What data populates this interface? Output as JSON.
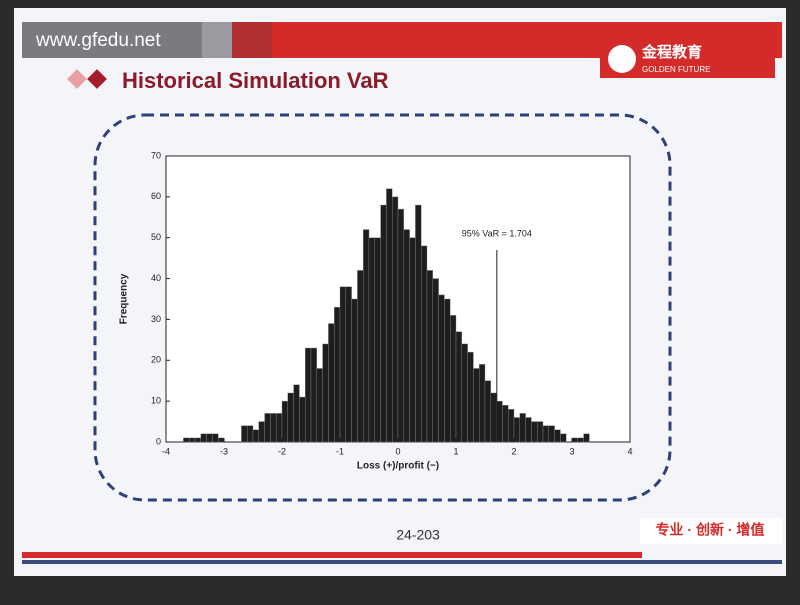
{
  "header": {
    "site": "www.gfedu.net",
    "logo_cn": "金程教育",
    "logo_en": "GOLDEN FUTURE"
  },
  "slide_title": "Historical Simulation VaR",
  "chart_data": {
    "type": "histogram",
    "xlabel": "Loss (+)/profit (−)",
    "ylabel": "Frequency",
    "bins": [
      -3.7,
      -3.6,
      -3.5,
      -3.4,
      -3.3,
      -3.2,
      -3.1,
      -3.0,
      -2.9,
      -2.8,
      -2.7,
      -2.6,
      -2.5,
      -2.4,
      -2.3,
      -2.2,
      -2.1,
      -2.0,
      -1.9,
      -1.8,
      -1.7,
      -1.6,
      -1.5,
      -1.4,
      -1.3,
      -1.2,
      -1.1,
      -1.0,
      -0.9,
      -0.8,
      -0.7,
      -0.6,
      -0.5,
      -0.4,
      -0.3,
      -0.2,
      -0.1,
      0.0,
      0.1,
      0.2,
      0.3,
      0.4,
      0.5,
      0.6,
      0.7,
      0.8,
      0.9,
      1.0,
      1.1,
      1.2,
      1.3,
      1.4,
      1.5,
      1.6,
      1.7,
      1.8,
      1.9,
      2.0,
      2.1,
      2.2,
      2.3,
      2.4,
      2.5,
      2.6,
      2.7,
      2.8,
      2.9,
      3.0,
      3.1,
      3.2,
      3.3
    ],
    "values": [
      1,
      1,
      1,
      2,
      2,
      2,
      1,
      0,
      0,
      0,
      4,
      4,
      3,
      5,
      7,
      7,
      7,
      10,
      12,
      14,
      11,
      23,
      23,
      18,
      24,
      29,
      33,
      38,
      38,
      35,
      42,
      52,
      50,
      50,
      58,
      62,
      60,
      57,
      52,
      50,
      58,
      48,
      42,
      40,
      36,
      35,
      31,
      27,
      24,
      22,
      18,
      19,
      15,
      12,
      10,
      9,
      8,
      6,
      7,
      6,
      5,
      5,
      4,
      4,
      3,
      2,
      0,
      1,
      1,
      2
    ],
    "color": "#1e1e1e",
    "xlim": [
      -4,
      4
    ],
    "xticks": [
      -4,
      -3,
      -2,
      -1,
      0,
      1,
      2,
      3,
      4
    ],
    "ylim": [
      0,
      70
    ],
    "yticks": [
      0,
      10,
      20,
      30,
      40,
      50,
      60,
      70
    ],
    "annotation": {
      "text": "95% VaR = 1.704",
      "x": 1.704,
      "y": 47
    }
  },
  "footer": {
    "page": "24-203",
    "slogan": "专业 · 创新 · 增值"
  }
}
